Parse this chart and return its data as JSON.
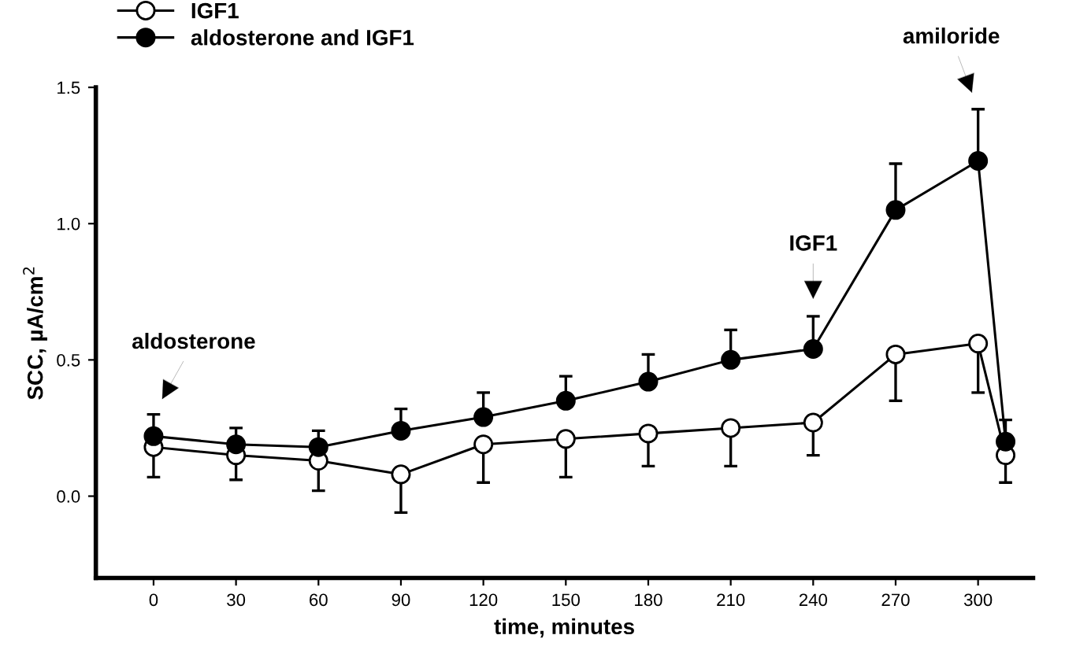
{
  "chart_data": {
    "type": "line",
    "xlabel": "time, minutes",
    "ylabel": "SCC, µA/cm$^{2}$",
    "x": [
      0,
      30,
      60,
      90,
      120,
      150,
      180,
      210,
      240,
      270,
      300,
      310
    ],
    "series": [
      {
        "name": "IGF1",
        "color": "#ffffff",
        "values": [
          0.18,
          0.15,
          0.13,
          0.08,
          0.19,
          0.21,
          0.23,
          0.25,
          0.27,
          0.52,
          0.56,
          0.15
        ],
        "errors": [
          [
            0.07,
            0.18
          ],
          [
            0.06,
            0.15
          ],
          [
            0.02,
            0.13
          ],
          [
            -0.06,
            0.08
          ],
          [
            0.05,
            0.19
          ],
          [
            0.07,
            0.21
          ],
          [
            0.11,
            0.23
          ],
          [
            0.11,
            0.25
          ],
          [
            0.15,
            0.27
          ],
          [
            0.35,
            0.52
          ],
          [
            0.38,
            0.56
          ],
          [
            0.05,
            0.15
          ]
        ]
      },
      {
        "name": "aldosterone and IGF1",
        "color": "#000000",
        "values": [
          0.22,
          0.19,
          0.18,
          0.24,
          0.29,
          0.35,
          0.42,
          0.5,
          0.54,
          1.05,
          1.23,
          0.2
        ],
        "errors": [
          [
            0.22,
            0.3
          ],
          [
            0.19,
            0.25
          ],
          [
            0.18,
            0.24
          ],
          [
            0.24,
            0.32
          ],
          [
            0.29,
            0.38
          ],
          [
            0.35,
            0.44
          ],
          [
            0.42,
            0.52
          ],
          [
            0.5,
            0.61
          ],
          [
            0.54,
            0.66
          ],
          [
            1.05,
            1.22
          ],
          [
            1.23,
            1.42
          ],
          [
            0.2,
            0.28
          ]
        ]
      }
    ],
    "annotations": [
      {
        "text": "aldosterone",
        "x": 0,
        "y": 0.3
      },
      {
        "text": "IGF1",
        "x": 240,
        "y": 0.66
      },
      {
        "text": "amiloride",
        "x": 300,
        "y": 1.42
      }
    ],
    "xlim": [
      -21,
      320
    ],
    "ylim": [
      -0.3,
      1.5
    ],
    "xticks": [
      0,
      30,
      60,
      90,
      120,
      150,
      180,
      210,
      240,
      270,
      300
    ],
    "yticks": [
      {
        "value": 0,
        "label": "0.0"
      },
      {
        "value": 0.5,
        "label": "0.5"
      },
      {
        "value": 1.0,
        "label": "1.0"
      },
      {
        "value": 1.5,
        "label": "1.5"
      }
    ],
    "marker": "circle",
    "line_style": "solid",
    "legend": "top left",
    "grid": false
  }
}
